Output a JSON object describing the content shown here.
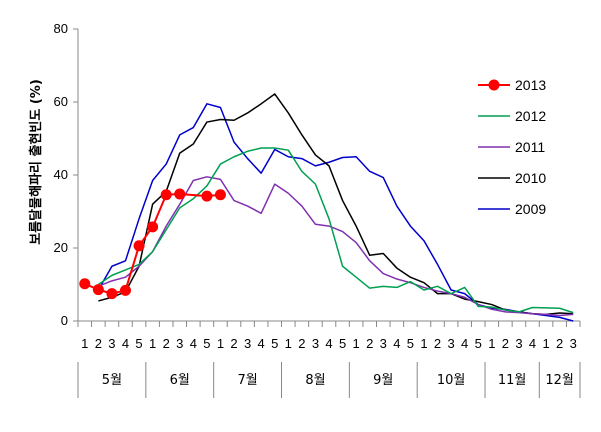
{
  "chart_data": {
    "type": "line",
    "title": "",
    "ylabel": "보름달물해파리 출현빈도 (%)",
    "xlabel": "",
    "ylim": [
      0,
      80
    ],
    "yticks": [
      0,
      20,
      40,
      60,
      80
    ],
    "grid": false,
    "legend_position": "right",
    "categories": [
      {
        "week": "1",
        "month": "5월"
      },
      {
        "week": "2",
        "month": "5월"
      },
      {
        "week": "3",
        "month": "5월"
      },
      {
        "week": "4",
        "month": "5월"
      },
      {
        "week": "5",
        "month": "5월"
      },
      {
        "week": "1",
        "month": "6월"
      },
      {
        "week": "2",
        "month": "6월"
      },
      {
        "week": "3",
        "month": "6월"
      },
      {
        "week": "4",
        "month": "6월"
      },
      {
        "week": "5",
        "month": "6월"
      },
      {
        "week": "1",
        "month": "7월"
      },
      {
        "week": "2",
        "month": "7월"
      },
      {
        "week": "3",
        "month": "7월"
      },
      {
        "week": "4",
        "month": "7월"
      },
      {
        "week": "5",
        "month": "7월"
      },
      {
        "week": "1",
        "month": "8월"
      },
      {
        "week": "2",
        "month": "8월"
      },
      {
        "week": "3",
        "month": "8월"
      },
      {
        "week": "4",
        "month": "8월"
      },
      {
        "week": "5",
        "month": "8월"
      },
      {
        "week": "1",
        "month": "9월"
      },
      {
        "week": "2",
        "month": "9월"
      },
      {
        "week": "3",
        "month": "9월"
      },
      {
        "week": "4",
        "month": "9월"
      },
      {
        "week": "5",
        "month": "9월"
      },
      {
        "week": "1",
        "month": "10월"
      },
      {
        "week": "2",
        "month": "10월"
      },
      {
        "week": "3",
        "month": "10월"
      },
      {
        "week": "4",
        "month": "10월"
      },
      {
        "week": "5",
        "month": "10월"
      },
      {
        "week": "1",
        "month": "11월"
      },
      {
        "week": "2",
        "month": "11월"
      },
      {
        "week": "3",
        "month": "11월"
      },
      {
        "week": "4",
        "month": "11월"
      },
      {
        "week": "1",
        "month": "12월"
      },
      {
        "week": "2",
        "month": "12월"
      },
      {
        "week": "3",
        "month": "12월"
      }
    ],
    "months": [
      "5월",
      "6월",
      "7월",
      "8월",
      "9월",
      "10월",
      "11월",
      "12월"
    ],
    "series": [
      {
        "name": "2013",
        "color": "#ff0000",
        "marker": "circle",
        "points": [
          [
            1,
            10.2
          ],
          [
            2,
            8.6
          ],
          [
            3,
            7.5
          ],
          [
            4,
            8.4
          ],
          [
            5,
            20.6
          ],
          [
            6,
            25.8
          ],
          [
            7,
            34.6
          ],
          [
            8,
            34.8
          ],
          [
            10,
            34.2
          ],
          [
            11,
            34.6
          ]
        ]
      },
      {
        "name": "2012",
        "color": "#00a050",
        "points": [
          [
            2,
            10
          ],
          [
            3,
            12.5
          ],
          [
            4,
            14
          ],
          [
            5,
            15.5
          ],
          [
            6,
            19
          ],
          [
            7,
            25
          ],
          [
            8,
            31
          ],
          [
            9,
            33.5
          ],
          [
            10,
            37
          ],
          [
            11,
            43
          ],
          [
            12,
            45
          ],
          [
            13,
            46.5
          ],
          [
            14,
            47.4
          ],
          [
            15,
            47.4
          ],
          [
            16,
            46.8
          ],
          [
            17,
            41
          ],
          [
            18,
            37.5
          ],
          [
            19,
            28
          ],
          [
            20,
            15
          ],
          [
            21,
            12
          ],
          [
            22,
            9
          ],
          [
            23,
            9.5
          ],
          [
            24,
            9.2
          ],
          [
            25,
            10.8
          ],
          [
            26,
            8.5
          ],
          [
            27,
            9.5
          ],
          [
            28,
            7.5
          ],
          [
            29,
            9.2
          ],
          [
            30,
            4
          ],
          [
            31,
            3.8
          ],
          [
            32,
            3
          ],
          [
            33,
            2.5
          ],
          [
            34,
            3.7
          ],
          [
            35,
            3.6
          ],
          [
            36,
            3.5
          ],
          [
            37,
            2.3
          ]
        ]
      },
      {
        "name": "2011",
        "color": "#8030b0",
        "points": [
          [
            2,
            9.5
          ],
          [
            3,
            11
          ],
          [
            4,
            12
          ],
          [
            5,
            15
          ],
          [
            6,
            19
          ],
          [
            7,
            26
          ],
          [
            8,
            32
          ],
          [
            9,
            38.5
          ],
          [
            10,
            39.5
          ],
          [
            11,
            38.8
          ],
          [
            12,
            33
          ],
          [
            13,
            31.5
          ],
          [
            14,
            29.5
          ],
          [
            15,
            37.5
          ],
          [
            16,
            35
          ],
          [
            17,
            31.5
          ],
          [
            18,
            26.5
          ],
          [
            19,
            26
          ],
          [
            20,
            24.5
          ],
          [
            21,
            21.5
          ],
          [
            22,
            16.5
          ],
          [
            23,
            13
          ],
          [
            24,
            11.5
          ],
          [
            25,
            10.5
          ],
          [
            26,
            9.2
          ],
          [
            27,
            8.2
          ],
          [
            28,
            7.5
          ],
          [
            29,
            6.5
          ],
          [
            30,
            4.5
          ],
          [
            31,
            3.2
          ],
          [
            32,
            2.5
          ],
          [
            33,
            2.3
          ],
          [
            34,
            2
          ],
          [
            35,
            1.8
          ],
          [
            36,
            1.5
          ],
          [
            37,
            1.8
          ]
        ]
      },
      {
        "name": "2010",
        "color": "#000000",
        "points": [
          [
            2,
            5.5
          ],
          [
            3,
            6.5
          ],
          [
            4,
            8
          ],
          [
            5,
            15
          ],
          [
            6,
            32
          ],
          [
            7,
            35.5
          ],
          [
            8,
            46
          ],
          [
            9,
            48.5
          ],
          [
            10,
            54.5
          ],
          [
            11,
            55.2
          ],
          [
            12,
            55
          ],
          [
            13,
            57
          ],
          [
            14,
            59.5
          ],
          [
            15,
            62.2
          ],
          [
            16,
            57
          ],
          [
            17,
            51
          ],
          [
            18,
            45.5
          ],
          [
            19,
            42.5
          ],
          [
            20,
            33
          ],
          [
            21,
            26
          ],
          [
            22,
            18
          ],
          [
            23,
            18.5
          ],
          [
            24,
            14.5
          ],
          [
            25,
            12
          ],
          [
            26,
            10.5
          ],
          [
            27,
            7.5
          ],
          [
            28,
            7.5
          ],
          [
            29,
            6
          ],
          [
            30,
            5.3
          ],
          [
            31,
            4.5
          ],
          [
            32,
            3
          ],
          [
            33,
            2.5
          ],
          [
            34,
            2
          ],
          [
            35,
            1.8
          ],
          [
            36,
            2.2
          ],
          [
            37,
            2
          ]
        ]
      },
      {
        "name": "2009",
        "color": "#0000cc",
        "points": [
          [
            2,
            8.5
          ],
          [
            3,
            15
          ],
          [
            4,
            16.5
          ],
          [
            5,
            28
          ],
          [
            6,
            38.5
          ],
          [
            7,
            43
          ],
          [
            8,
            51
          ],
          [
            9,
            53
          ],
          [
            10,
            59.5
          ],
          [
            11,
            58.5
          ],
          [
            12,
            49
          ],
          [
            13,
            44.5
          ],
          [
            14,
            40.5
          ],
          [
            15,
            47
          ],
          [
            16,
            45
          ],
          [
            17,
            44.5
          ],
          [
            18,
            42.5
          ],
          [
            19,
            43.5
          ],
          [
            20,
            44.8
          ],
          [
            21,
            45
          ],
          [
            22,
            41
          ],
          [
            23,
            39.3
          ],
          [
            24,
            31.5
          ],
          [
            25,
            26
          ],
          [
            26,
            22
          ],
          [
            27,
            15.5
          ],
          [
            28,
            8.5
          ],
          [
            29,
            7.5
          ],
          [
            30,
            4.5
          ],
          [
            31,
            3.5
          ],
          [
            32,
            3.2
          ],
          [
            33,
            2.5
          ],
          [
            34,
            2
          ],
          [
            35,
            1.5
          ],
          [
            36,
            1
          ],
          [
            37,
            0
          ]
        ]
      }
    ]
  }
}
